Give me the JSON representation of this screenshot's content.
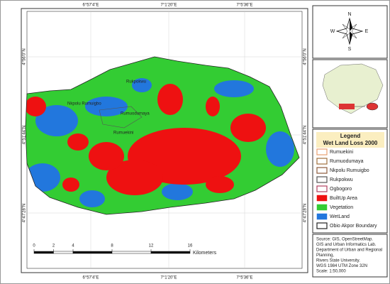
{
  "map": {
    "coordinates": {
      "top": [
        "6°57'4\"E",
        "7°1'20\"E",
        "7°5'36\"E"
      ],
      "bottom": [
        "6°57'4\"E",
        "7°1'20\"E",
        "7°5'36\"E"
      ],
      "left": [
        "4°56'0\"N",
        "4°51'44\"N",
        "4°47'28\"N"
      ],
      "right": [
        "4°56'0\"N",
        "4°51'44\"N",
        "4°47'28\"N"
      ]
    },
    "place_labels": [
      "Rukpokwu",
      "Rumuodumaya",
      "Rumuekini",
      "Nkpolu Rumuigbo"
    ],
    "compass": {
      "n": "N",
      "e": "E",
      "s": "S",
      "w": "W"
    },
    "legend": {
      "title": "Legend",
      "subtitle": "Wet Land Loss 2000",
      "items": [
        {
          "label": "Rumuekini",
          "color": "#e8a070",
          "style": "outline"
        },
        {
          "label": "Rumuodumaya",
          "color": "#a0703c",
          "style": "outline"
        },
        {
          "label": "Nkpolu Rumuigbo",
          "color": "#8c5a3c",
          "style": "outline"
        },
        {
          "label": "Rukpokwu",
          "color": "#555555",
          "style": "outline"
        },
        {
          "label": "Ogbogoro",
          "color": "#b04060",
          "style": "outline"
        },
        {
          "label": "BuiltUp Area",
          "color": "#ee1111",
          "style": "fill"
        },
        {
          "label": "Vegetation",
          "color": "#33cc33",
          "style": "fill"
        },
        {
          "label": "WetLand",
          "color": "#2277dd",
          "style": "fill"
        },
        {
          "label": "Obio Akpor Boundary",
          "color": "#222222",
          "style": "outline"
        }
      ]
    },
    "scale_bar": {
      "ticks": [
        0,
        2,
        4,
        8,
        12,
        16
      ],
      "unit": "Kilometers"
    },
    "source": [
      "Source: GIS, OpenStreetMap.",
      "GIS and Urban Informatics Lab.",
      "Department of Urban and Regional",
      "Planning,",
      "Rivers State University.",
      "WGS 1984 UTM Zone 32N",
      "Scale: 1:50,000"
    ]
  }
}
